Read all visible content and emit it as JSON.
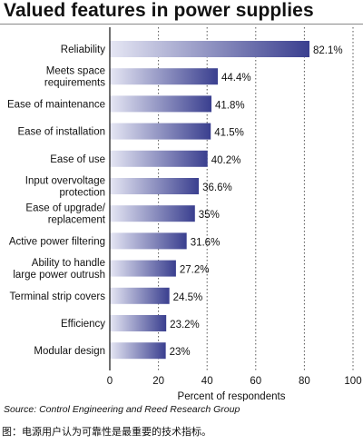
{
  "title": "Valued features in power supplies",
  "source": "Source: Control Engineering and Reed Research Group",
  "caption": "图：电源用户认为可靠性是最重要的技术指标。",
  "chart_data": {
    "type": "bar",
    "orientation": "horizontal",
    "title": "Valued features in power supplies",
    "xlabel": "Percent of respondents",
    "ylabel": "",
    "xlim": [
      0,
      100
    ],
    "xticks": [
      0,
      20,
      40,
      60,
      80,
      100
    ],
    "grid": "dotted vertical lines",
    "categories": [
      [
        "Reliability"
      ],
      [
        "Meets space",
        "requirements"
      ],
      [
        "Ease of maintenance"
      ],
      [
        "Ease of installation"
      ],
      [
        "Ease of use"
      ],
      [
        "Input overvoltage",
        "protection"
      ],
      [
        "Ease of upgrade/",
        "replacement"
      ],
      [
        "Active power filtering"
      ],
      [
        "Ability to handle",
        "large power outrush"
      ],
      [
        "Terminal strip covers"
      ],
      [
        "Efficiency"
      ],
      [
        "Modular design"
      ]
    ],
    "values": [
      82.1,
      44.4,
      41.8,
      41.5,
      40.2,
      36.6,
      35,
      31.6,
      27.2,
      24.5,
      23.2,
      23
    ],
    "value_labels": [
      "82.1%",
      "44.4%",
      "41.8%",
      "41.5%",
      "40.2%",
      "36.6%",
      "35%",
      "31.6%",
      "27.2%",
      "24.5%",
      "23.2%",
      "23%"
    ],
    "colors": {
      "bar_light": "#e6e7f4",
      "bar_dark": "#3a3f8f",
      "grid": "#555555"
    }
  }
}
